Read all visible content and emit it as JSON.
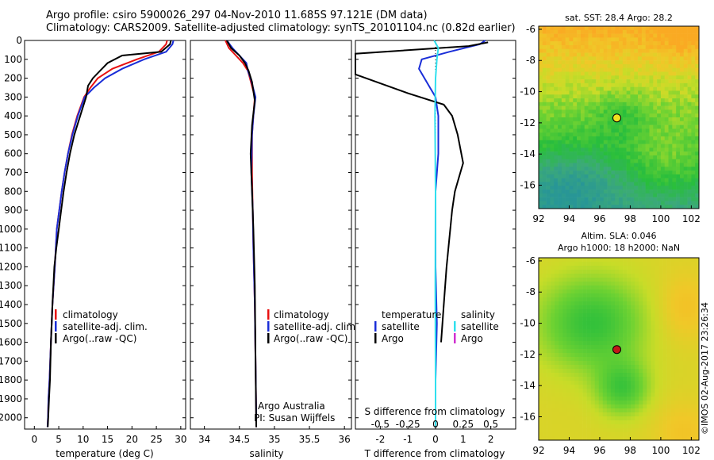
{
  "header": {
    "line1": "Argo profile: csiro 5900026_297 04-Nov-2010 11.685S 97.121E (DM data)",
    "line2": "Climatology: CARS2009. Satellite-adjusted climatology: synTS_20101104.nc (0.82d earlier)"
  },
  "timestamp": "©IMOS 02-Aug-2017 23:26:34",
  "colors": {
    "climatology": "#e81010",
    "satellite_adj": "#1a2ed8",
    "argo": "#000000",
    "satellite_salinity": "#30e0ee",
    "argo_salinity": "#d030d0",
    "marker_sst": "#f0e020",
    "marker_sla": "#c01818"
  },
  "chart_data": [
    {
      "id": "temperature",
      "type": "line",
      "xlabel": "temperature (deg C)",
      "ylabel": "",
      "xlim": [
        -2,
        31
      ],
      "ylim": [
        2060,
        0
      ],
      "xticks": [
        "0",
        "5",
        "10",
        "15",
        "20",
        "25",
        "30"
      ],
      "xtick_values": [
        0,
        5,
        10,
        15,
        20,
        25,
        30
      ],
      "yticks": [
        "0",
        "100",
        "200",
        "300",
        "400",
        "500",
        "600",
        "700",
        "800",
        "900",
        "1000",
        "1100",
        "1200",
        "1300",
        "1400",
        "1500",
        "1600",
        "1700",
        "1800",
        "1900",
        "2000"
      ],
      "ytick_values": [
        0,
        100,
        200,
        300,
        400,
        500,
        600,
        700,
        800,
        900,
        1000,
        1100,
        1200,
        1300,
        1400,
        1500,
        1600,
        1700,
        1800,
        1900,
        2000
      ],
      "legend": [
        "climatology",
        "satellite-adj. clim.",
        "Argo(..raw -QC)"
      ],
      "series": [
        {
          "name": "climatology",
          "color_key": "climatology",
          "x": [
            27.2,
            27.0,
            25.5,
            21.0,
            16.0,
            13.0,
            11.5,
            10.2,
            8.8,
            7.7,
            6.9,
            6.2,
            5.6,
            5.1,
            4.6,
            4.2,
            3.7,
            3.4,
            3.1,
            2.9,
            2.8,
            2.7
          ],
          "y": [
            0,
            20,
            60,
            100,
            150,
            200,
            250,
            300,
            400,
            500,
            600,
            700,
            800,
            900,
            1000,
            1200,
            1400,
            1600,
            1800,
            1900,
            2000,
            2050
          ]
        },
        {
          "name": "satellite-adj. clim.",
          "color_key": "satellite_adj",
          "x": [
            28.5,
            28.3,
            27.0,
            22.5,
            18.0,
            14.5,
            12.2,
            10.3,
            8.9,
            7.8,
            6.9,
            6.2,
            5.6,
            5.1,
            4.6,
            4.2,
            3.7,
            3.4,
            3.1,
            2.9,
            2.8,
            2.7
          ],
          "y": [
            0,
            20,
            60,
            100,
            150,
            200,
            250,
            300,
            400,
            500,
            600,
            700,
            800,
            900,
            1000,
            1200,
            1400,
            1600,
            1800,
            1900,
            2000,
            2050
          ]
        },
        {
          "name": "Argo(..raw -QC)",
          "color_key": "argo",
          "x": [
            28.0,
            27.8,
            26.0,
            18.0,
            15.0,
            13.5,
            12.0,
            11.0,
            10.6,
            9.4,
            8.2,
            7.3,
            6.6,
            6.0,
            5.5,
            5.0,
            4.5,
            4.1,
            3.7,
            3.4,
            3.2,
            3.0,
            2.85,
            2.75
          ],
          "y": [
            0,
            20,
            60,
            80,
            120,
            160,
            200,
            240,
            300,
            400,
            500,
            600,
            700,
            800,
            900,
            1000,
            1100,
            1200,
            1400,
            1600,
            1800,
            1900,
            2000,
            2050
          ]
        }
      ]
    },
    {
      "id": "salinity",
      "type": "line",
      "xlabel": "salinity",
      "ylabel": "",
      "xlim": [
        33.8,
        36.1
      ],
      "ylim": [
        2060,
        0
      ],
      "xticks": [
        "34",
        "34.5",
        "35",
        "35.5",
        "36"
      ],
      "xtick_values": [
        34,
        34.5,
        35,
        35.5,
        36
      ],
      "legend": [
        "climatology",
        "satellite-adj. clim.",
        "Argo(..raw -QC)"
      ],
      "annotation_lines": [
        "Argo Australia",
        "PI: Susan Wijffels"
      ],
      "series": [
        {
          "name": "climatology",
          "color_key": "climatology",
          "x": [
            34.3,
            34.35,
            34.45,
            34.55,
            34.62,
            34.65,
            34.72,
            34.7,
            34.68,
            34.68,
            34.69,
            34.7,
            34.72,
            34.73,
            34.74,
            34.74
          ],
          "y": [
            0,
            40,
            80,
            120,
            160,
            200,
            300,
            400,
            500,
            700,
            900,
            1100,
            1400,
            1700,
            2000,
            2050
          ]
        },
        {
          "name": "satellite-adj. clim.",
          "color_key": "satellite_adj",
          "x": [
            34.32,
            34.4,
            34.5,
            34.6,
            34.62,
            34.66,
            34.73,
            34.7,
            34.68,
            34.67,
            34.69,
            34.7,
            34.72,
            34.73,
            34.74,
            34.74
          ],
          "y": [
            0,
            40,
            80,
            120,
            160,
            200,
            300,
            400,
            500,
            700,
            900,
            1100,
            1400,
            1700,
            2000,
            2050
          ]
        },
        {
          "name": "Argo(..raw -QC)",
          "color_key": "argo",
          "x": [
            34.32,
            34.38,
            34.5,
            34.58,
            34.63,
            34.68,
            34.72,
            34.68,
            34.66,
            34.68,
            34.7,
            34.72,
            34.73,
            34.74
          ],
          "y": [
            0,
            40,
            80,
            120,
            160,
            220,
            320,
            450,
            600,
            800,
            1000,
            1300,
            1700,
            2050
          ]
        }
      ]
    },
    {
      "id": "differences",
      "type": "line",
      "xlabel": "T difference from climatology",
      "xlabel_top": "S difference from climatology",
      "xlim": [
        -2.9,
        2.9
      ],
      "ylim": [
        2060,
        0
      ],
      "xticks": [
        "-2",
        "-1",
        "0",
        "1",
        "2"
      ],
      "xtick_values": [
        -2,
        -1,
        0,
        1,
        2
      ],
      "sticks": [
        "-0.5",
        "-0.25",
        "0",
        "0.25",
        "0.5"
      ],
      "stick_values": [
        -0.5,
        -0.25,
        0,
        0.25,
        0.5
      ],
      "legend_temperature_title": "temperature",
      "legend_salinity_title": "salinity",
      "legend_temperature": [
        "satellite",
        "Argo"
      ],
      "legend_salinity": [
        "satellite",
        "Argo"
      ],
      "series": [
        {
          "name": "T satellite",
          "color_key": "satellite_adj",
          "x": [
            1.8,
            1.6,
            0.5,
            -0.5,
            -0.6,
            -0.2,
            0.0,
            0.1,
            0.1,
            0.0,
            0.0,
            0.0,
            0.05,
            0.0,
            0.0
          ],
          "y": [
            0,
            20,
            60,
            100,
            150,
            250,
            300,
            400,
            600,
            800,
            1000,
            1200,
            1500,
            1800,
            2050
          ]
        },
        {
          "name": "T Argo",
          "color_key": "argo",
          "x": [
            1.9,
            1.2,
            -2.9,
            -2.9,
            -1.0,
            0.3,
            0.6,
            0.8,
            1.0,
            0.9,
            0.7,
            0.6,
            0.4,
            0.3,
            0.2
          ],
          "y": [
            10,
            30,
            70,
            180,
            280,
            340,
            400,
            500,
            650,
            700,
            800,
            900,
            1200,
            1400,
            1600
          ]
        },
        {
          "name": "S satellite",
          "color_key": "satellite_salinity",
          "x": [
            -0.05,
            0.1,
            0.05,
            0.0,
            -0.02,
            0.0,
            -0.01,
            0.0,
            0.0
          ],
          "y": [
            0,
            40,
            100,
            200,
            400,
            800,
            1300,
            1800,
            2050
          ]
        }
      ]
    },
    {
      "id": "sst_map",
      "type": "heatmap",
      "title": "sat. SST: 28.4 Argo: 28.2",
      "xlim": [
        92,
        102.5
      ],
      "ylim": [
        -17.5,
        -5.8
      ],
      "xticks": [
        "92",
        "94",
        "96",
        "98",
        "100",
        "102"
      ],
      "xtick_values": [
        92,
        94,
        96,
        98,
        100,
        102
      ],
      "yticks": [
        "-6",
        "-8",
        "-10",
        "-12",
        "-14",
        "-16"
      ],
      "ytick_values": [
        -6,
        -8,
        -10,
        -12,
        -14,
        -16
      ],
      "point": {
        "lon": 97.121,
        "lat": -11.685
      }
    },
    {
      "id": "sla_map",
      "type": "heatmap",
      "title": "Altim. SLA: 0.046",
      "subtitle": "Argo h1000: 18 h2000: NaN",
      "xlim": [
        92,
        102.5
      ],
      "ylim": [
        -17.5,
        -5.8
      ],
      "xticks": [
        "92",
        "94",
        "96",
        "98",
        "100",
        "102"
      ],
      "xtick_values": [
        92,
        94,
        96,
        98,
        100,
        102
      ],
      "yticks": [
        "-6",
        "-8",
        "-10",
        "-12",
        "-14",
        "-16"
      ],
      "ytick_values": [
        -6,
        -8,
        -10,
        -12,
        -14,
        -16
      ],
      "point": {
        "lon": 97.121,
        "lat": -11.685
      }
    }
  ]
}
